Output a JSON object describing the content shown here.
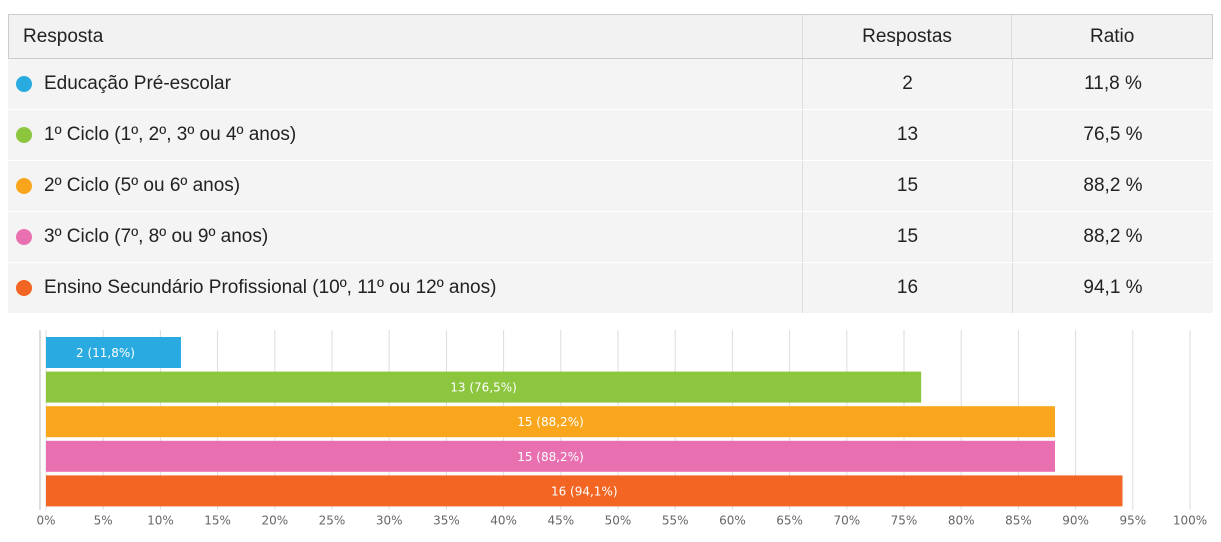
{
  "table": {
    "header": [
      "Resposta",
      "Respostas",
      "Ratio"
    ],
    "rows": [
      [
        "Educação Pré-escolar",
        2,
        "11,8 %"
      ],
      [
        "1º Ciclo (1º, 2º, 3º ou 4º anos)",
        13,
        "76,5 %"
      ],
      [
        "2º Ciclo (5º ou 6º anos)",
        15,
        "88,2 %"
      ],
      [
        "3º Ciclo (7º, 8º ou 9º anos)",
        15,
        "88,2 %"
      ],
      [
        "Ensino Secundário Profissional (10º, 11º ou 12º anos)",
        16,
        "94,1 %"
      ]
    ]
  },
  "chart_data": {
    "type": "bar",
    "orientation": "horizontal",
    "values": [
      11.8,
      76.5,
      88.2,
      88.2,
      94.1
    ],
    "value_labels": [
      "2 (11,8%)",
      "13 (76,5%)",
      "15 (88,2%)",
      "15 (88,2%)",
      "16 (94,1%)"
    ],
    "colors": [
      "#29abe2",
      "#8cc63f",
      "#f9a61c",
      "#e86fb0",
      "#f26522"
    ],
    "xlim": [
      0,
      100
    ],
    "xticks": [
      {
        "value": 0,
        "label": "0%"
      },
      {
        "value": 5,
        "label": "5%"
      },
      {
        "value": 10,
        "label": "10%"
      },
      {
        "value": 15,
        "label": "15%"
      },
      {
        "value": 20,
        "label": "20%"
      },
      {
        "value": 25,
        "label": "25%"
      },
      {
        "value": 30,
        "label": "30%"
      },
      {
        "value": 35,
        "label": "35%"
      },
      {
        "value": 40,
        "label": "40%"
      },
      {
        "value": 45,
        "label": "45%"
      },
      {
        "value": 50,
        "label": "50%"
      },
      {
        "value": 55,
        "label": "55%"
      },
      {
        "value": 60,
        "label": "60%"
      },
      {
        "value": 65,
        "label": "65%"
      },
      {
        "value": 70,
        "label": "70%"
      },
      {
        "value": 75,
        "label": "75%"
      },
      {
        "value": 80,
        "label": "80%"
      },
      {
        "value": 85,
        "label": "85%"
      },
      {
        "value": 90,
        "label": "90%"
      },
      {
        "value": 95,
        "label": "95%"
      },
      {
        "value": 100,
        "label": "100%"
      }
    ],
    "grid": true
  }
}
